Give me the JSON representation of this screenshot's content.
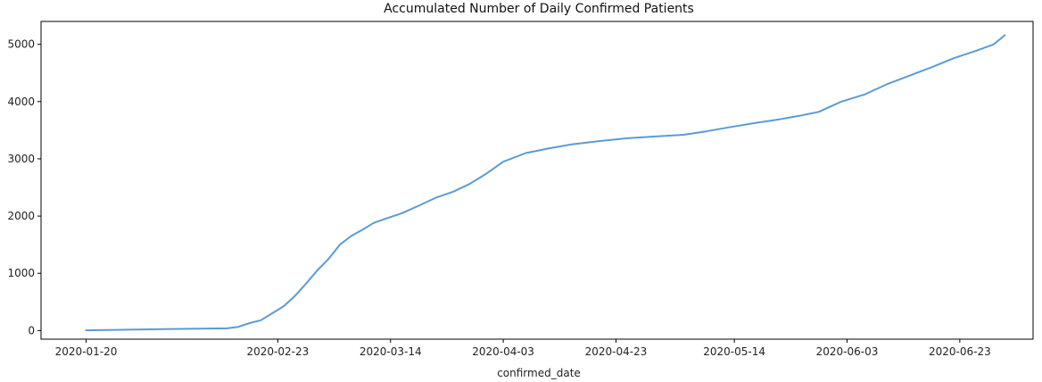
{
  "chart_data": {
    "type": "line",
    "title": "Accumulated Number of Daily Confirmed Patients",
    "xlabel": "confirmed_date",
    "ylabel": "",
    "xlim": [
      "2020-01-12",
      "2020-07-06"
    ],
    "ylim": [
      -150,
      5400
    ],
    "grid": false,
    "legend": "none",
    "line_color": "#5b9bd5",
    "x_ticks": [
      "2020-01-20",
      "2020-02-23",
      "2020-03-14",
      "2020-04-03",
      "2020-04-23",
      "2020-05-14",
      "2020-06-03",
      "2020-06-23"
    ],
    "y_ticks": [
      0,
      1000,
      2000,
      3000,
      4000,
      5000
    ],
    "series": [
      {
        "x": [
          "2020-01-20",
          "2020-01-25",
          "2020-01-30",
          "2020-02-04",
          "2020-02-09",
          "2020-02-14",
          "2020-02-16",
          "2020-02-18",
          "2020-02-20",
          "2020-02-22",
          "2020-02-24",
          "2020-02-26",
          "2020-02-28",
          "2020-03-01",
          "2020-03-03",
          "2020-03-05",
          "2020-03-07",
          "2020-03-09",
          "2020-03-11",
          "2020-03-13",
          "2020-03-16",
          "2020-03-19",
          "2020-03-22",
          "2020-03-25",
          "2020-03-28",
          "2020-03-31",
          "2020-04-03",
          "2020-04-07",
          "2020-04-11",
          "2020-04-15",
          "2020-04-20",
          "2020-04-25",
          "2020-04-30",
          "2020-05-05",
          "2020-05-09",
          "2020-05-13",
          "2020-05-18",
          "2020-05-22",
          "2020-05-26",
          "2020-05-29",
          "2020-06-02",
          "2020-06-06",
          "2020-06-10",
          "2020-06-14",
          "2020-06-18",
          "2020-06-22",
          "2020-06-26",
          "2020-06-29",
          "2020-07-01"
        ],
        "values": [
          5,
          12,
          20,
          28,
          32,
          38,
          65,
          130,
          180,
          300,
          420,
          600,
          820,
          1050,
          1250,
          1500,
          1650,
          1760,
          1880,
          1950,
          2050,
          2180,
          2320,
          2420,
          2560,
          2740,
          2950,
          3100,
          3180,
          3250,
          3310,
          3360,
          3390,
          3420,
          3480,
          3550,
          3630,
          3690,
          3760,
          3820,
          4000,
          4120,
          4300,
          4450,
          4600,
          4760,
          4890,
          5000,
          5160
        ]
      }
    ]
  }
}
